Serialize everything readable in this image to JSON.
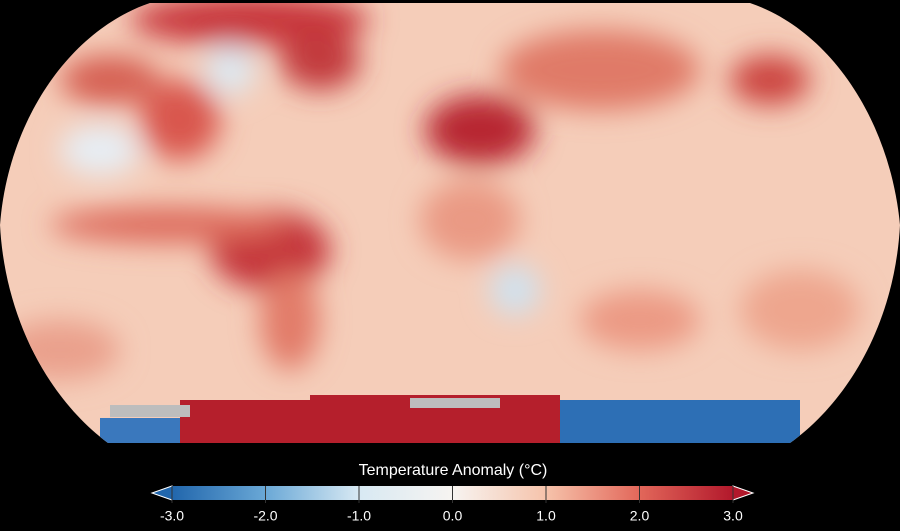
{
  "map": {
    "colorbar": {
      "title": "Temperature Anomaly (°C)",
      "range": [
        -3,
        3
      ],
      "ticks": [
        {
          "value": -3,
          "label": "-3.0"
        },
        {
          "value": -2,
          "label": "-2.0"
        },
        {
          "value": -1,
          "label": "-1.0"
        },
        {
          "value": 0,
          "label": "0.0"
        },
        {
          "value": 1,
          "label": "1.0"
        },
        {
          "value": 2,
          "label": "2.0"
        },
        {
          "value": 3,
          "label": "3.0"
        }
      ],
      "colors": [
        "#2166ac",
        "#6aa8d6",
        "#d8e9f3",
        "#f7f4f1",
        "#f6c3ab",
        "#e2675a",
        "#b2182b"
      ]
    }
  }
}
